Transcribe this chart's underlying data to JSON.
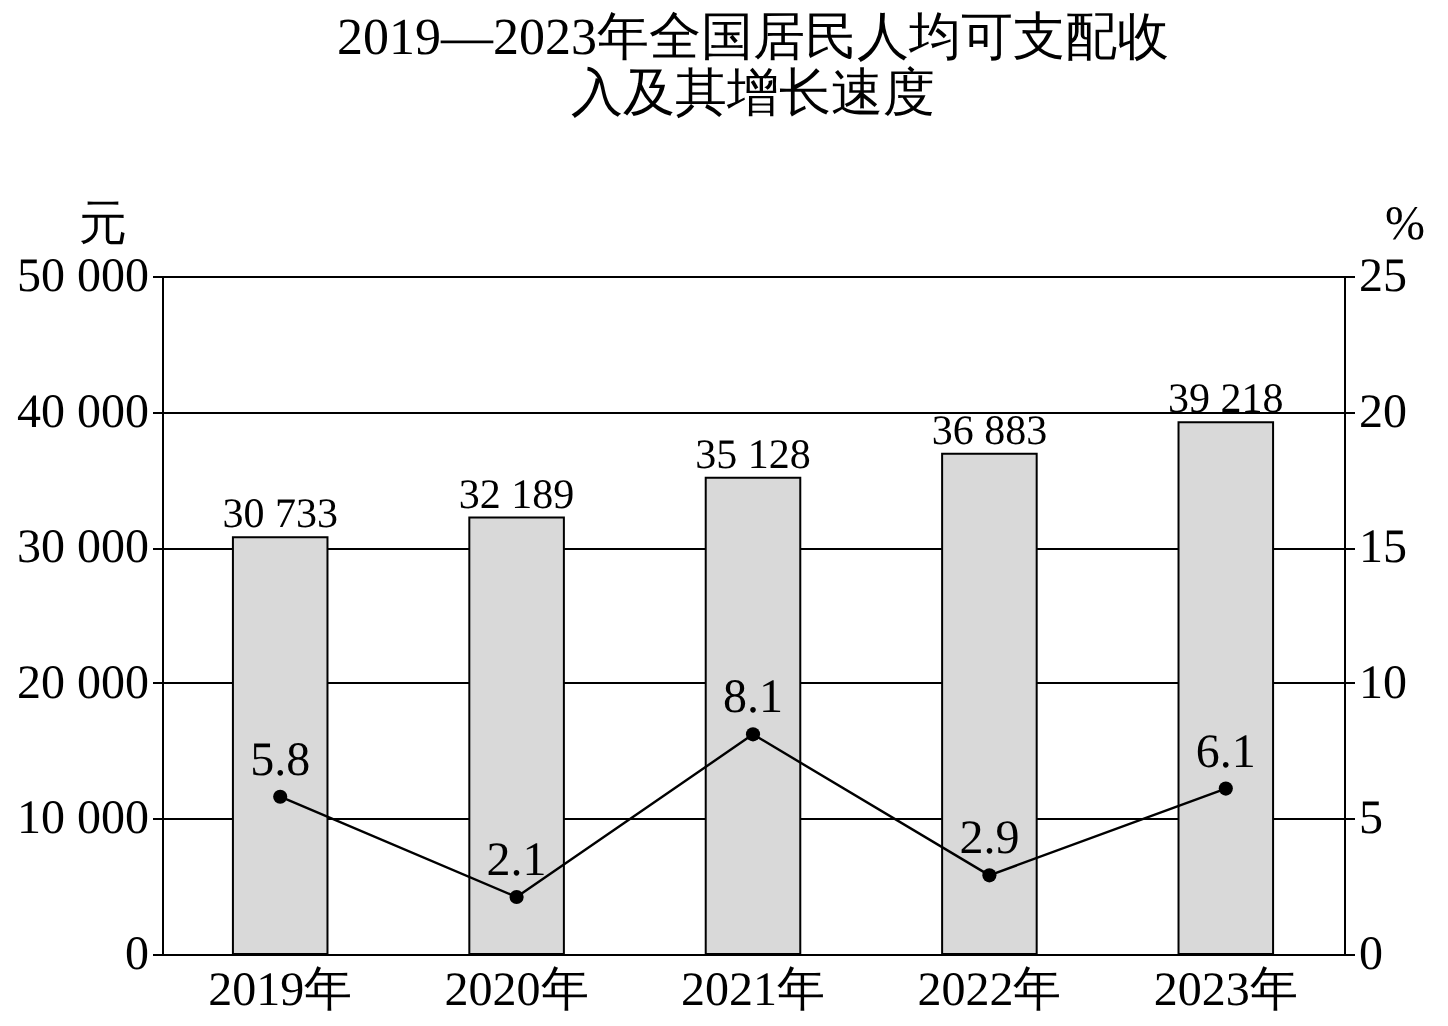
{
  "chart_data": {
    "type": "bar",
    "title": "2019—2023年全国居民人均可支配收入及其增长速度",
    "ylabel": "元",
    "y2label": "%",
    "categories": [
      "2019年",
      "2020年",
      "2021年",
      "2022年",
      "2023年"
    ],
    "series": [
      {
        "color": "#d9d9d9",
        "values": [
          30733,
          32189,
          35128,
          36883,
          39218
        ],
        "value_labels": [
          "30 733",
          "32 189",
          "35 128",
          "36 883",
          "39 218"
        ]
      },
      {
        "type": "line",
        "axis": "y2",
        "color": "#000000",
        "values": [
          5.8,
          2.1,
          8.1,
          2.9,
          6.1
        ],
        "value_labels": [
          "5.8",
          "2.1",
          "8.1",
          "2.9",
          "6.1"
        ]
      }
    ],
    "ylim": [
      0,
      50000
    ],
    "yticks": [
      {
        "value": 0,
        "label": "0"
      },
      {
        "value": 10000,
        "label": "10 000"
      },
      {
        "value": 20000,
        "label": "20 000"
      },
      {
        "value": 30000,
        "label": "30 000"
      },
      {
        "value": 40000,
        "label": "40 000"
      },
      {
        "value": 50000,
        "label": "50 000"
      }
    ],
    "y2lim": [
      0,
      25
    ],
    "y2ticks": [
      0,
      5,
      10,
      15,
      20,
      25
    ],
    "grid": "y",
    "marker": "circle",
    "line_style": "solid"
  }
}
